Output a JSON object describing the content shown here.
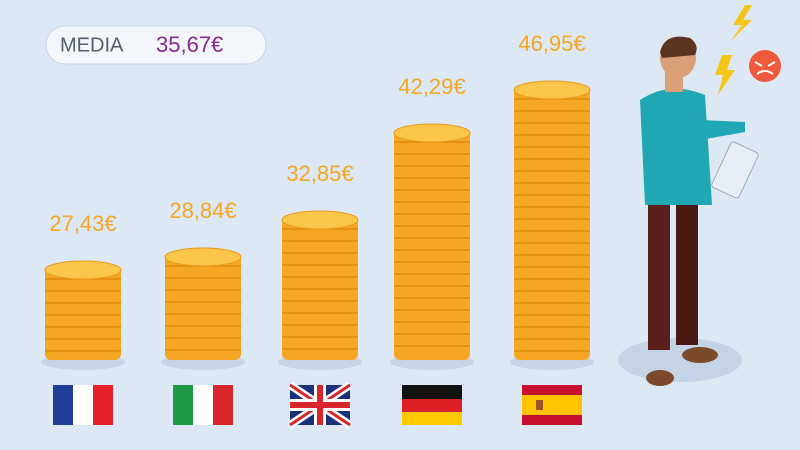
{
  "chart_data": {
    "type": "bar",
    "average": {
      "label": "MEDIA",
      "text": "35,67€"
    },
    "categories": [
      null,
      null,
      null,
      null,
      null
    ],
    "values": [
      27.43,
      28.84,
      32.85,
      42.29,
      46.95
    ],
    "value_labels": [
      "27,43€",
      "28,84€",
      "32,85€",
      "42,29€",
      "46,95€"
    ],
    "color": "#f5a623"
  }
}
